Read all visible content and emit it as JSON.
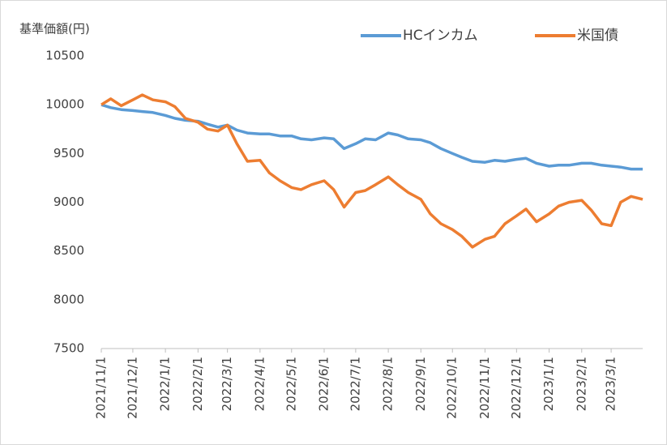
{
  "chart_data": {
    "type": "line",
    "y_label": "基準価額(円)",
    "x": [
      "2021/11/1",
      "2021/11/10",
      "2021/11/20",
      "2021/12/1",
      "2021/12/10",
      "2021/12/20",
      "2022/1/1",
      "2022/1/10",
      "2022/1/20",
      "2022/2/1",
      "2022/2/10",
      "2022/2/20",
      "2022/3/1",
      "2022/3/10",
      "2022/3/20",
      "2022/4/1",
      "2022/4/10",
      "2022/4/20",
      "2022/5/1",
      "2022/5/10",
      "2022/5/20",
      "2022/6/1",
      "2022/6/10",
      "2022/6/20",
      "2022/7/1",
      "2022/7/10",
      "2022/7/20",
      "2022/8/1",
      "2022/8/10",
      "2022/8/20",
      "2022/9/1",
      "2022/9/10",
      "2022/9/20",
      "2022/10/1",
      "2022/10/10",
      "2022/10/20",
      "2022/11/1",
      "2022/11/10",
      "2022/11/20",
      "2022/12/1",
      "2022/12/10",
      "2022/12/20",
      "2023/1/1",
      "2023/1/10",
      "2023/1/20",
      "2023/2/1",
      "2023/2/10",
      "2023/2/20",
      "2023/3/1",
      "2023/3/10",
      "2023/3/20",
      "2023/3/31"
    ],
    "series": [
      {
        "name": "HCインカム",
        "color": "#5b9bd5",
        "values": [
          10000,
          9970,
          9950,
          9940,
          9930,
          9920,
          9890,
          9860,
          9840,
          9830,
          9800,
          9770,
          9790,
          9740,
          9710,
          9700,
          9700,
          9680,
          9680,
          9650,
          9640,
          9660,
          9650,
          9550,
          9600,
          9650,
          9640,
          9710,
          9690,
          9650,
          9640,
          9610,
          9550,
          9500,
          9460,
          9420,
          9410,
          9430,
          9420,
          9440,
          9450,
          9400,
          9370,
          9380,
          9380,
          9400,
          9400,
          9380,
          9370,
          9360,
          9340,
          9340
        ]
      },
      {
        "name": "米国債",
        "color": "#ed7d31",
        "values": [
          10000,
          10060,
          9990,
          10050,
          10100,
          10050,
          10030,
          9980,
          9860,
          9820,
          9750,
          9730,
          9790,
          9600,
          9420,
          9430,
          9300,
          9220,
          9150,
          9130,
          9180,
          9220,
          9130,
          8950,
          9100,
          9120,
          9180,
          9260,
          9180,
          9100,
          9030,
          8880,
          8780,
          8720,
          8650,
          8540,
          8620,
          8650,
          8780,
          8860,
          8930,
          8800,
          8880,
          8960,
          9000,
          9020,
          8920,
          8780,
          8760,
          9000,
          9060,
          9030
        ]
      }
    ],
    "xlim": [
      "2021/11/1",
      "2023/3/31"
    ],
    "xticks": [
      "2021/11/1",
      "2021/12/1",
      "2022/1/1",
      "2022/2/1",
      "2022/3/1",
      "2022/4/1",
      "2022/5/1",
      "2022/6/1",
      "2022/7/1",
      "2022/8/1",
      "2022/9/1",
      "2022/10/1",
      "2022/11/1",
      "2022/12/1",
      "2023/1/1",
      "2023/2/1",
      "2023/3/1"
    ],
    "ylim": [
      7500,
      10500
    ],
    "yticks": [
      7500,
      8000,
      8500,
      9000,
      9500,
      10000,
      10500
    ],
    "legend": "top-right",
    "grid": false
  }
}
